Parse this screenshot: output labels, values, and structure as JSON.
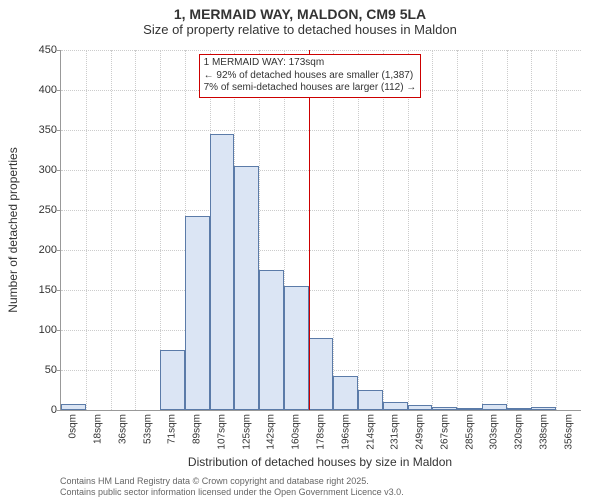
{
  "title_line1": "1, MERMAID WAY, MALDON, CM9 5LA",
  "title_line2": "Size of property relative to detached houses in Maldon",
  "chart": {
    "type": "histogram",
    "ylabel": "Number of detached properties",
    "xlabel": "Distribution of detached houses by size in Maldon",
    "ylim": [
      0,
      450
    ],
    "ytick_step": 50,
    "grid_color": "#cccccc",
    "axis_color": "#999999",
    "background_color": "#ffffff",
    "bar_color": "#dbe5f4",
    "bar_border_color": "#5b7ba8",
    "bar_border_width": 1,
    "x_categories": [
      "0sqm",
      "18sqm",
      "36sqm",
      "53sqm",
      "71sqm",
      "89sqm",
      "107sqm",
      "125sqm",
      "142sqm",
      "160sqm",
      "178sqm",
      "196sqm",
      "214sqm",
      "231sqm",
      "249sqm",
      "267sqm",
      "285sqm",
      "303sqm",
      "320sqm",
      "338sqm",
      "356sqm"
    ],
    "values": [
      8,
      0,
      0,
      0,
      75,
      242,
      345,
      305,
      175,
      155,
      90,
      42,
      25,
      10,
      6,
      4,
      2,
      8,
      3,
      4,
      0
    ],
    "label_fontsize": 12,
    "tick_fontsize": 11,
    "xtick_fontsize": 10
  },
  "marker": {
    "position_index": 10,
    "color": "#cc0000",
    "width": 1
  },
  "annotation": {
    "line1": "1 MERMAID WAY: 173sqm",
    "line2": "← 92% of detached houses are smaller (1,387)",
    "line3": "7% of semi-detached houses are larger (112) →",
    "border_color": "#cc0000",
    "border_width": 1,
    "text_color": "#333333",
    "fontsize": 10
  },
  "footer": {
    "line1": "Contains HM Land Registry data © Crown copyright and database right 2025.",
    "line2": "Contains public sector information licensed under the Open Government Licence v3.0."
  }
}
